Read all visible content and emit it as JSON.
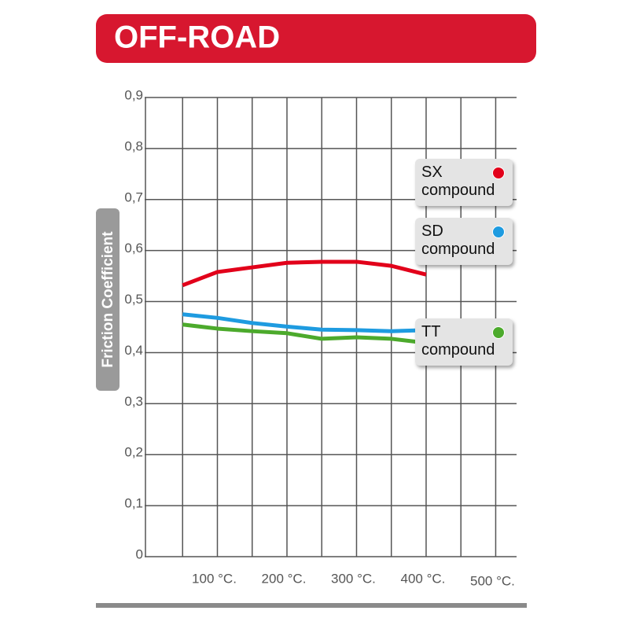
{
  "chart_data": {
    "type": "line",
    "title": "OFF-ROAD",
    "ylabel": "Friction Coefficient",
    "x": [
      50,
      100,
      150,
      200,
      250,
      300,
      350,
      400
    ],
    "series": [
      {
        "name": "SX compound",
        "color": "#e2001a",
        "values": [
          0.532,
          0.558,
          0.567,
          0.576,
          0.578,
          0.578,
          0.57,
          0.553
        ]
      },
      {
        "name": "SD compound",
        "color": "#1e9be0",
        "values": [
          0.475,
          0.468,
          0.458,
          0.451,
          0.445,
          0.444,
          0.442,
          0.444
        ]
      },
      {
        "name": "TT compound",
        "color": "#4caa2c",
        "values": [
          0.455,
          0.447,
          0.442,
          0.438,
          0.427,
          0.43,
          0.427,
          0.419
        ]
      }
    ],
    "xlim": [
      0,
      530
    ],
    "xticks": [
      {
        "value": 100,
        "label": "100 °C."
      },
      {
        "value": 200,
        "label": "200 °C."
      },
      {
        "value": 300,
        "label": "300 °C."
      },
      {
        "value": 400,
        "label": "400 °C."
      },
      {
        "value": 500,
        "label": "500 °C."
      }
    ],
    "xminorticks": [
      50,
      150,
      250,
      350,
      450
    ],
    "ylim": [
      0,
      0.9
    ],
    "yticks": [
      0,
      {
        "value": 0.1,
        "label": "0,1"
      },
      {
        "value": 0.2,
        "label": "0,2"
      },
      {
        "value": 0.3,
        "label": "0,3"
      },
      {
        "value": 0.4,
        "label": "0,4"
      },
      {
        "value": 0.5,
        "label": "0,5"
      },
      {
        "value": 0.6,
        "label": "0,6"
      },
      {
        "value": 0.7,
        "label": "0,7"
      },
      {
        "value": 0.8,
        "label": "0,8"
      },
      {
        "value": 0.9,
        "label": "0,9"
      }
    ],
    "grid": true
  }
}
